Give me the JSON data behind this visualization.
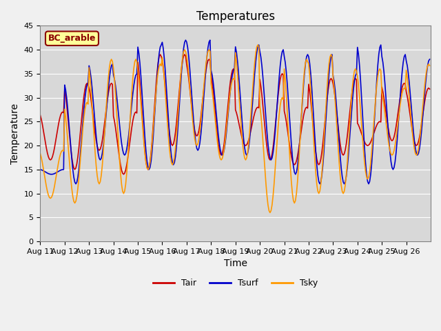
{
  "title": "Temperatures",
  "xlabel": "Time",
  "ylabel": "Temperature",
  "legend_label": "BC_arable",
  "series_labels": [
    "Tair",
    "Tsurf",
    "Tsky"
  ],
  "series_colors": [
    "#cc0000",
    "#0000cc",
    "#ff9900"
  ],
  "ylim": [
    0,
    45
  ],
  "yticks": [
    0,
    5,
    10,
    15,
    20,
    25,
    30,
    35,
    40,
    45
  ],
  "xtick_positions": [
    0,
    1,
    2,
    3,
    4,
    5,
    6,
    7,
    8,
    9,
    10,
    11,
    12,
    13,
    14,
    15
  ],
  "xtick_labels": [
    "Aug 11",
    "Aug 12",
    "Aug 13",
    "Aug 14",
    "Aug 15",
    "Aug 16",
    "Aug 17",
    "Aug 18",
    "Aug 19",
    "Aug 20",
    "Aug 21",
    "Aug 22",
    "Aug 23",
    "Aug 24",
    "Aug 25",
    "Aug 26"
  ],
  "fig_bg_color": "#f0f0f0",
  "plot_bg_color": "#d8d8d8",
  "title_fontsize": 12,
  "axis_label_fontsize": 10,
  "tick_fontsize": 8,
  "legend_box_color": "#ffff99",
  "legend_box_edge": "#8b0000",
  "n_days": 16,
  "Tair_peaks": [
    27,
    33,
    33,
    27,
    39,
    39,
    38,
    36,
    28,
    35,
    28,
    34,
    34,
    25,
    33,
    32
  ],
  "Tair_troughs": [
    17,
    15,
    19,
    14,
    15,
    20,
    22,
    18,
    20,
    17,
    16,
    16,
    18,
    20,
    21,
    20
  ],
  "Tsurf_peaks": [
    15,
    33,
    37,
    35,
    41,
    42,
    42,
    36,
    41,
    40,
    39,
    39,
    35,
    41,
    39,
    38
  ],
  "Tsurf_troughs": [
    14,
    12,
    17,
    18,
    15,
    16,
    19,
    18,
    18,
    17,
    14,
    12,
    12,
    12,
    15,
    18
  ],
  "Tsky_peaks": [
    19,
    29,
    38,
    38,
    37,
    40,
    40,
    34,
    41,
    30,
    38,
    39,
    36,
    36,
    32,
    37
  ],
  "Tsky_troughs": [
    9,
    8,
    12,
    10,
    15,
    16,
    20,
    17,
    17,
    6,
    8,
    10,
    10,
    13,
    18,
    18
  ],
  "Tair_peak_phase_hr": 14,
  "Tsurf_peak_phase_hr": 13,
  "Tsky_peak_phase_hr": 14
}
